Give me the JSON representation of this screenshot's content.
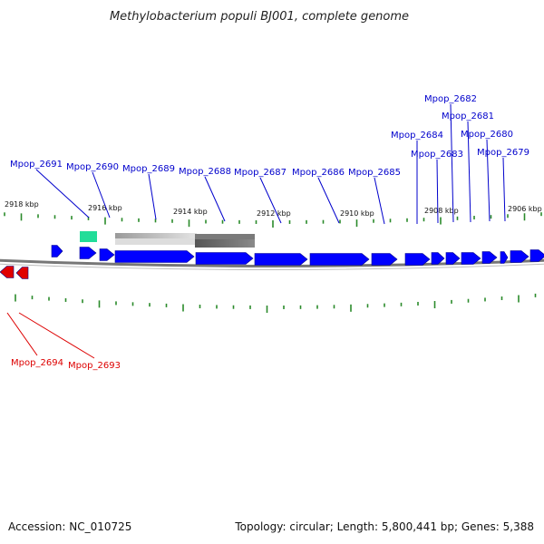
{
  "title": "Methylobacterium populi BJ001, complete genome",
  "accession_text": "Accession: NC_010725",
  "summary_text": "Topology: circular; Length: 5,800,441 bp; Genes: 5,388",
  "ticks": [
    "2918 kbp",
    "2916 kbp",
    "2914 kbp",
    "2912 kbp",
    "2910 kbp",
    "2908 kbp",
    "2906 kbp"
  ],
  "genes_top": [
    "Mpop_2691",
    "Mpop_2690",
    "Mpop_2689",
    "Mpop_2688",
    "Mpop_2687",
    "Mpop_2686",
    "Mpop_2685",
    "Mpop_2684",
    "Mpop_2683",
    "Mpop_2682",
    "Mpop_2681",
    "Mpop_2680",
    "Mpop_2679"
  ],
  "genes_bottom": [
    "Mpop_2694",
    "Mpop_2693"
  ],
  "colors": {
    "forward_gene": "#0000ff",
    "reverse_gene": "#e00000",
    "forward_label": "#0000cc",
    "reverse_label": "#dd0000",
    "tick_marks": "#2a8a2a",
    "feature_teal": "#22dd99",
    "backbone": "#777777"
  }
}
